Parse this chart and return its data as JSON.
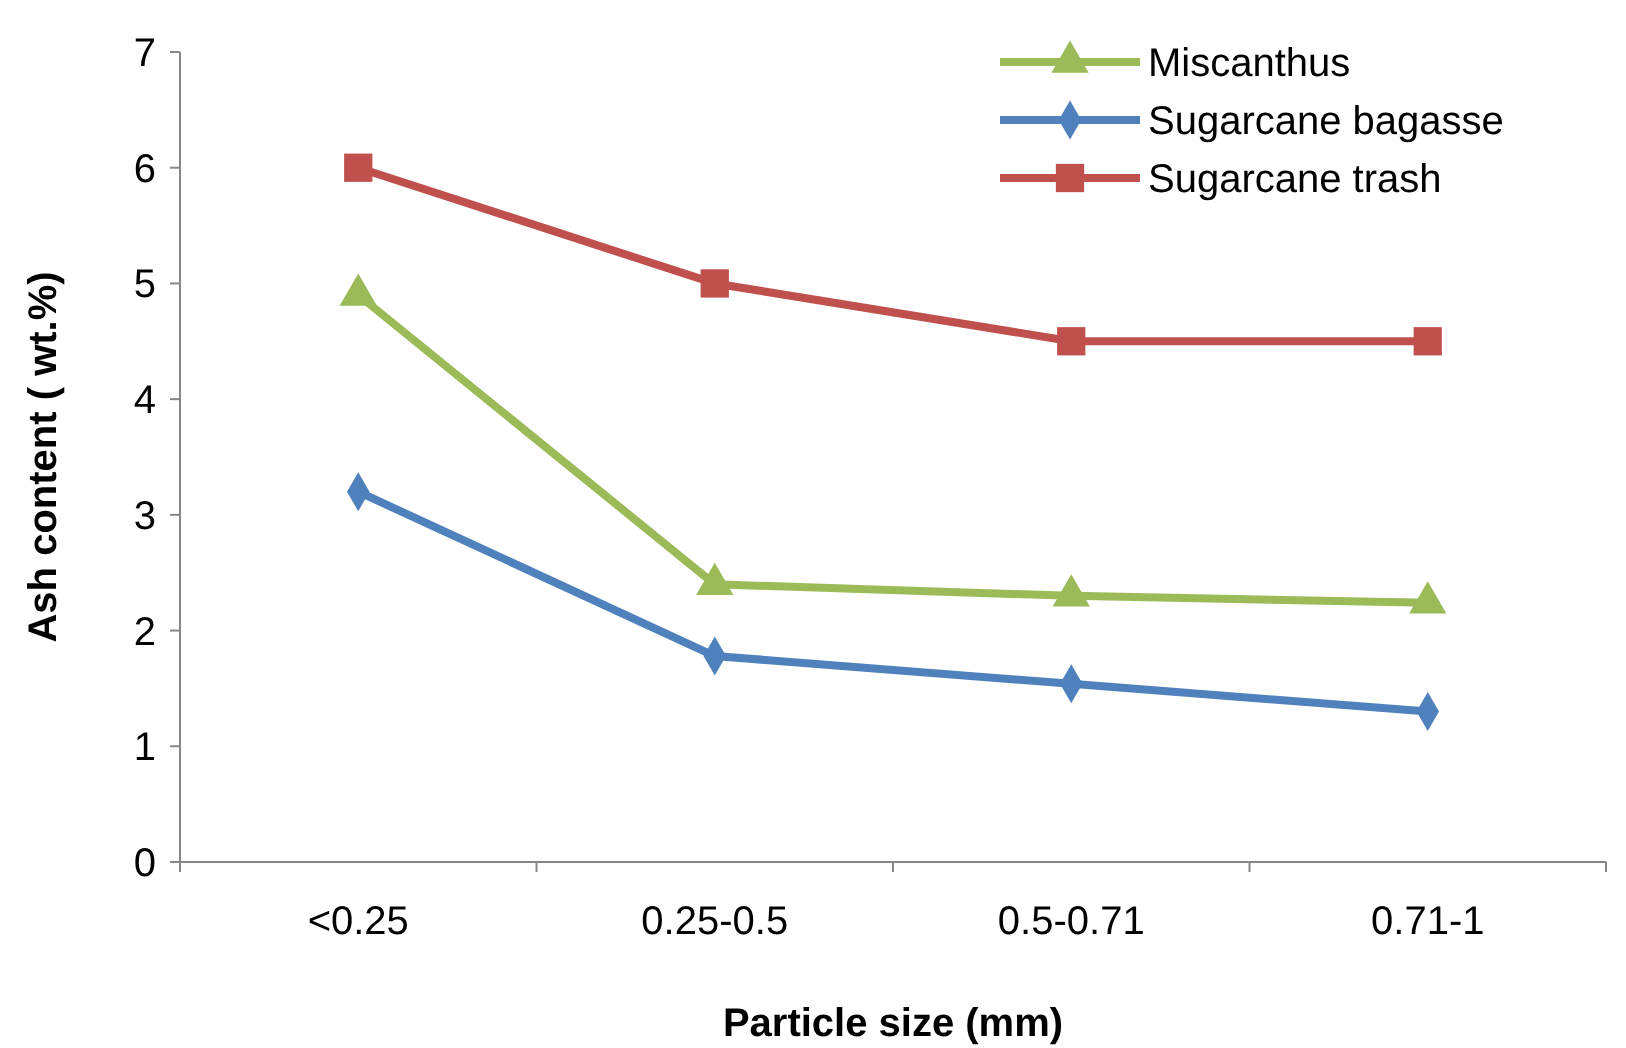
{
  "chart_data": {
    "type": "line",
    "xlabel": "Particle size (mm)",
    "ylabel": "Ash content ( wt.%)",
    "categories": [
      "<0.25",
      "0.25-0.5",
      "0.5-0.71",
      "0.71-1"
    ],
    "series": [
      {
        "name": "Miscanthus",
        "color": "#9bbb59",
        "marker": "triangle",
        "values": [
          4.9,
          2.4,
          2.3,
          2.24
        ]
      },
      {
        "name": "Sugarcane bagasse",
        "color": "#4f81bd",
        "marker": "diamond",
        "values": [
          3.2,
          1.78,
          1.54,
          1.3
        ]
      },
      {
        "name": "Sugarcane trash",
        "color": "#c0504d",
        "marker": "square",
        "values": [
          6,
          5,
          4.5,
          4.5
        ]
      }
    ],
    "ylim": [
      0,
      7
    ],
    "yticks": [
      0,
      1,
      2,
      3,
      4,
      5,
      6,
      7
    ],
    "grid": false,
    "legend": "top right",
    "line_style": "solid"
  }
}
